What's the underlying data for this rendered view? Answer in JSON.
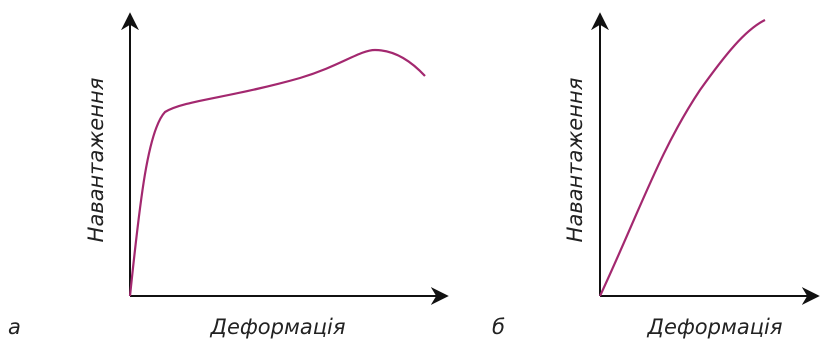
{
  "panels": [
    {
      "label": "а",
      "x_axis_label": "Деформація",
      "y_axis_label": "Навантаження"
    },
    {
      "label": "б",
      "x_axis_label": "Деформація",
      "y_axis_label": "Навантаження"
    }
  ]
}
